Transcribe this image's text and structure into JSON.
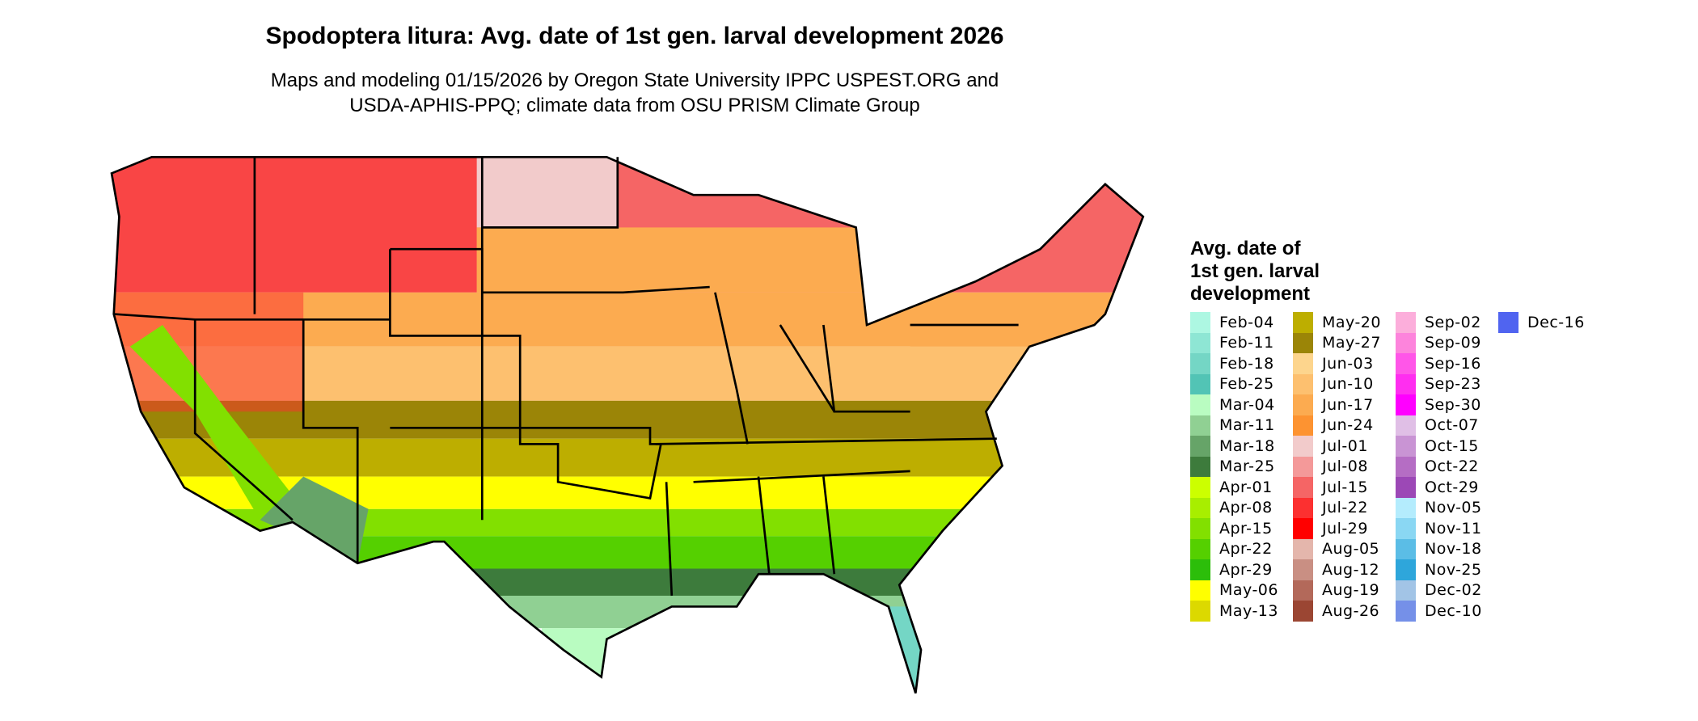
{
  "title": "Spodoptera litura: Avg. date of 1st gen. larval development 2026",
  "subtitle_line1": "Maps and modeling 01/15/2026 by Oregon State University IPPC USPEST.ORG and",
  "subtitle_line2": "USDA-APHIS-PPQ; climate data from OSU PRISM Climate Group",
  "legend": {
    "title_lines": [
      "Avg. date of",
      "1st gen. larval",
      "development"
    ],
    "items": [
      {
        "label": "Feb-04",
        "color": "#adf7e2"
      },
      {
        "label": "Feb-11",
        "color": "#8ee6d4"
      },
      {
        "label": "Feb-18",
        "color": "#74d6c5"
      },
      {
        "label": "Feb-25",
        "color": "#52c4b5"
      },
      {
        "label": "Mar-04",
        "color": "#b9fcc1"
      },
      {
        "label": "Mar-11",
        "color": "#90d093"
      },
      {
        "label": "Mar-18",
        "color": "#66a468"
      },
      {
        "label": "Mar-25",
        "color": "#3d7b3c"
      },
      {
        "label": "Apr-01",
        "color": "#ccff00"
      },
      {
        "label": "Apr-08",
        "color": "#a8ee00"
      },
      {
        "label": "Apr-15",
        "color": "#82e000"
      },
      {
        "label": "Apr-22",
        "color": "#55d000"
      },
      {
        "label": "Apr-29",
        "color": "#2cbe0a"
      },
      {
        "label": "May-06",
        "color": "#ffff00"
      },
      {
        "label": "May-13",
        "color": "#dcd900"
      },
      {
        "label": "May-20",
        "color": "#bdae00"
      },
      {
        "label": "May-27",
        "color": "#9b8507"
      },
      {
        "label": "Jun-03",
        "color": "#fdd58d"
      },
      {
        "label": "Jun-10",
        "color": "#fdc06f"
      },
      {
        "label": "Jun-17",
        "color": "#fcab50"
      },
      {
        "label": "Jun-24",
        "color": "#fd9331"
      },
      {
        "label": "Jul-01",
        "color": "#f2cbcb"
      },
      {
        "label": "Jul-08",
        "color": "#f49999"
      },
      {
        "label": "Jul-15",
        "color": "#f56565"
      },
      {
        "label": "Jul-22",
        "color": "#fc3030"
      },
      {
        "label": "Jul-29",
        "color": "#ff0000"
      },
      {
        "label": "Aug-05",
        "color": "#e4b6ac"
      },
      {
        "label": "Aug-12",
        "color": "#c98f83"
      },
      {
        "label": "Aug-19",
        "color": "#b3695a"
      },
      {
        "label": "Aug-26",
        "color": "#9b4633"
      },
      {
        "label": "Sep-02",
        "color": "#fcaedb"
      },
      {
        "label": "Sep-09",
        "color": "#fd84dc"
      },
      {
        "label": "Sep-16",
        "color": "#ff56e8"
      },
      {
        "label": "Sep-23",
        "color": "#ff2ef0"
      },
      {
        "label": "Sep-30",
        "color": "#ff00ff"
      },
      {
        "label": "Oct-07",
        "color": "#e0bfe6"
      },
      {
        "label": "Oct-15",
        "color": "#c994d4"
      },
      {
        "label": "Oct-22",
        "color": "#b56dc4"
      },
      {
        "label": "Oct-29",
        "color": "#9c48b6"
      },
      {
        "label": "Nov-05",
        "color": "#b4ecfd"
      },
      {
        "label": "Nov-11",
        "color": "#8ad7f3"
      },
      {
        "label": "Nov-18",
        "color": "#5bbde6"
      },
      {
        "label": "Nov-25",
        "color": "#2ea6db"
      },
      {
        "label": "Dec-02",
        "color": "#a2c4e6"
      },
      {
        "label": "Dec-10",
        "color": "#7590e8"
      },
      {
        "label": "Dec-16",
        "color": "#5064f0"
      }
    ]
  }
}
